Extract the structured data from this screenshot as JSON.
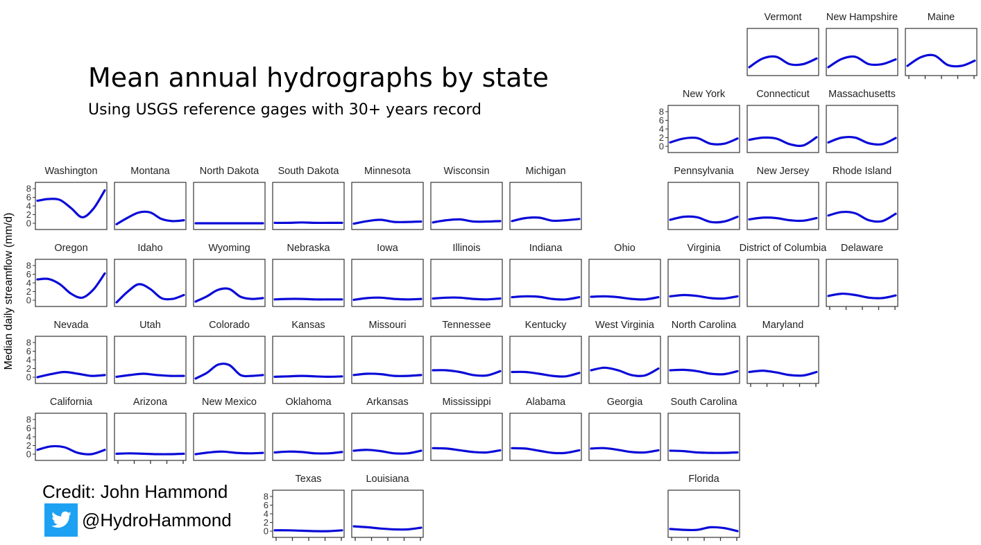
{
  "title": "Mean annual hydrographs by state",
  "subtitle": "Using USGS reference gages with 30+ years record",
  "credit": "Credit: John Hammond",
  "twitter_handle": "@HydroHammond",
  "colors": {
    "line": "#0a0ad8",
    "twitter": "#1da1f2"
  },
  "chart_data": {
    "type": "line",
    "ylabel": "Median daily streamflow (mm/d)",
    "ylim": [
      0,
      8
    ],
    "yticks": [
      0,
      2,
      4,
      6,
      8
    ],
    "grid": false,
    "panels": [
      {
        "name": "Vermont",
        "values": [
          0.5,
          2.5,
          2.9,
          1.2,
          1.2,
          2.5
        ],
        "yaxis": false,
        "xaxis": false
      },
      {
        "name": "New Hampshire",
        "values": [
          0.5,
          2.4,
          2.9,
          1.2,
          1.2,
          2.3
        ],
        "yaxis": false,
        "xaxis": false
      },
      {
        "name": "Maine",
        "values": [
          0.8,
          2.8,
          3.2,
          1.0,
          0.8,
          2.0
        ],
        "yaxis": false,
        "xaxis": true
      },
      {
        "name": "New York",
        "values": [
          0.9,
          1.8,
          1.9,
          0.6,
          0.6,
          1.8
        ],
        "yaxis": true,
        "xaxis": false
      },
      {
        "name": "Connecticut",
        "values": [
          1.5,
          2.0,
          1.8,
          0.5,
          0.2,
          2.1
        ],
        "yaxis": false,
        "xaxis": false
      },
      {
        "name": "Massachusetts",
        "values": [
          0.9,
          2.0,
          2.0,
          0.7,
          0.5,
          1.9
        ],
        "yaxis": false,
        "xaxis": false
      },
      {
        "name": "Washington",
        "values": [
          5.2,
          5.6,
          5.4,
          3.5,
          1.4,
          3.4,
          7.6
        ],
        "yaxis": true,
        "xaxis": false
      },
      {
        "name": "Montana",
        "values": [
          -0.2,
          1.3,
          2.5,
          2.5,
          1.0,
          0.5,
          0.7
        ],
        "yaxis": false,
        "xaxis": false
      },
      {
        "name": "North Dakota",
        "values": [
          0.0,
          0.0,
          0.0,
          0.0,
          0.0,
          0.0
        ],
        "yaxis": false,
        "xaxis": false
      },
      {
        "name": "South Dakota",
        "values": [
          0.1,
          0.1,
          0.2,
          0.1,
          0.1,
          0.1
        ],
        "yaxis": false,
        "xaxis": false
      },
      {
        "name": "Minnesota",
        "values": [
          -0.1,
          0.5,
          0.8,
          0.3,
          0.3,
          0.4
        ],
        "yaxis": false,
        "xaxis": false
      },
      {
        "name": "Wisconsin",
        "values": [
          0.2,
          0.7,
          0.9,
          0.4,
          0.4,
          0.5
        ],
        "yaxis": false,
        "xaxis": false
      },
      {
        "name": "Michigan",
        "values": [
          0.5,
          1.2,
          1.3,
          0.6,
          0.7,
          1.0
        ],
        "yaxis": false,
        "xaxis": false
      },
      {
        "name": "Pennsylvania",
        "values": [
          0.8,
          1.5,
          1.4,
          0.3,
          0.4,
          1.5
        ],
        "yaxis": false,
        "xaxis": false
      },
      {
        "name": "New Jersey",
        "values": [
          0.9,
          1.3,
          1.2,
          0.7,
          0.6,
          1.2
        ],
        "yaxis": false,
        "xaxis": false
      },
      {
        "name": "Rhode Island",
        "values": [
          1.8,
          2.6,
          2.3,
          0.7,
          0.5,
          2.2
        ],
        "yaxis": false,
        "xaxis": false
      },
      {
        "name": "Oregon",
        "values": [
          4.8,
          4.9,
          3.7,
          1.5,
          0.6,
          2.5,
          6.2
        ],
        "yaxis": true,
        "xaxis": false
      },
      {
        "name": "Idaho",
        "values": [
          -0.5,
          2.0,
          3.7,
          2.6,
          0.5,
          0.3,
          1.2
        ],
        "yaxis": false,
        "xaxis": false
      },
      {
        "name": "Wyoming",
        "values": [
          -0.3,
          0.9,
          2.4,
          2.6,
          0.8,
          0.3,
          0.5
        ],
        "yaxis": false,
        "xaxis": false
      },
      {
        "name": "Nebraska",
        "values": [
          0.2,
          0.3,
          0.3,
          0.2,
          0.2,
          0.2
        ],
        "yaxis": false,
        "xaxis": false
      },
      {
        "name": "Iowa",
        "values": [
          0.1,
          0.5,
          0.6,
          0.3,
          0.2,
          0.3
        ],
        "yaxis": false,
        "xaxis": false
      },
      {
        "name": "Illinois",
        "values": [
          0.4,
          0.6,
          0.6,
          0.3,
          0.2,
          0.4
        ],
        "yaxis": false,
        "xaxis": false
      },
      {
        "name": "Indiana",
        "values": [
          0.7,
          0.9,
          0.8,
          0.3,
          0.2,
          0.7
        ],
        "yaxis": false,
        "xaxis": false
      },
      {
        "name": "Ohio",
        "values": [
          0.8,
          0.9,
          0.7,
          0.3,
          0.2,
          0.7
        ],
        "yaxis": false,
        "xaxis": false
      },
      {
        "name": "Virginia",
        "values": [
          0.9,
          1.2,
          1.0,
          0.5,
          0.4,
          0.9
        ],
        "yaxis": false,
        "xaxis": false
      },
      {
        "name": "District of Columbia",
        "values": [],
        "yaxis": false,
        "xaxis": false
      },
      {
        "name": "Delaware",
        "values": [
          1.0,
          1.5,
          1.2,
          0.6,
          0.5,
          1.1
        ],
        "yaxis": false,
        "xaxis": true
      },
      {
        "name": "Nevada",
        "values": [
          0.0,
          0.7,
          1.2,
          0.8,
          0.3,
          0.5
        ],
        "yaxis": true,
        "xaxis": false
      },
      {
        "name": "Utah",
        "values": [
          0.1,
          0.5,
          0.8,
          0.5,
          0.3,
          0.3
        ],
        "yaxis": false,
        "xaxis": false
      },
      {
        "name": "Colorado",
        "values": [
          -0.3,
          1.0,
          2.9,
          2.8,
          0.5,
          0.3,
          0.5
        ],
        "yaxis": false,
        "xaxis": false
      },
      {
        "name": "Kansas",
        "values": [
          0.1,
          0.2,
          0.3,
          0.2,
          0.1,
          0.2
        ],
        "yaxis": false,
        "xaxis": false
      },
      {
        "name": "Missouri",
        "values": [
          0.5,
          0.8,
          0.7,
          0.3,
          0.3,
          0.5
        ],
        "yaxis": false,
        "xaxis": false
      },
      {
        "name": "Tennessee",
        "values": [
          1.6,
          1.6,
          1.2,
          0.5,
          0.4,
          1.4
        ],
        "yaxis": false,
        "xaxis": false
      },
      {
        "name": "Kentucky",
        "values": [
          1.2,
          1.2,
          0.8,
          0.3,
          0.2,
          1.0
        ],
        "yaxis": false,
        "xaxis": false
      },
      {
        "name": "West Virginia",
        "values": [
          1.6,
          2.2,
          1.6,
          0.5,
          0.4,
          2.0
        ],
        "yaxis": false,
        "xaxis": false
      },
      {
        "name": "North Carolina",
        "values": [
          1.6,
          1.7,
          1.4,
          0.8,
          0.7,
          1.4
        ],
        "yaxis": false,
        "xaxis": false
      },
      {
        "name": "Maryland",
        "values": [
          1.2,
          1.5,
          1.1,
          0.5,
          0.4,
          1.2
        ],
        "yaxis": false,
        "xaxis": true
      },
      {
        "name": "California",
        "values": [
          1.0,
          1.8,
          1.6,
          0.3,
          0.0,
          1.0
        ],
        "yaxis": true,
        "xaxis": false
      },
      {
        "name": "Arizona",
        "values": [
          0.1,
          0.2,
          0.1,
          0.0,
          0.0,
          0.1
        ],
        "yaxis": false,
        "xaxis": true
      },
      {
        "name": "New Mexico",
        "values": [
          0.0,
          0.4,
          0.6,
          0.3,
          0.2,
          0.3
        ],
        "yaxis": false,
        "xaxis": false
      },
      {
        "name": "Oklahoma",
        "values": [
          0.4,
          0.6,
          0.5,
          0.2,
          0.2,
          0.5
        ],
        "yaxis": false,
        "xaxis": false
      },
      {
        "name": "Arkansas",
        "values": [
          0.8,
          1.0,
          0.7,
          0.2,
          0.2,
          0.8
        ],
        "yaxis": false,
        "xaxis": false
      },
      {
        "name": "Mississippi",
        "values": [
          1.4,
          1.3,
          0.9,
          0.5,
          0.4,
          0.9
        ],
        "yaxis": false,
        "xaxis": false
      },
      {
        "name": "Alabama",
        "values": [
          1.4,
          1.3,
          0.8,
          0.3,
          0.3,
          0.9
        ],
        "yaxis": false,
        "xaxis": false
      },
      {
        "name": "Georgia",
        "values": [
          1.3,
          1.4,
          1.0,
          0.5,
          0.4,
          0.9
        ],
        "yaxis": false,
        "xaxis": false
      },
      {
        "name": "South Carolina",
        "values": [
          0.8,
          0.7,
          0.4,
          0.3,
          0.3,
          0.4
        ],
        "yaxis": false,
        "xaxis": false
      },
      {
        "name": "Texas",
        "values": [
          0.2,
          0.2,
          0.1,
          0.0,
          0.0,
          0.2
        ],
        "yaxis": true,
        "xaxis": true
      },
      {
        "name": "Louisiana",
        "values": [
          1.1,
          0.9,
          0.6,
          0.4,
          0.4,
          0.8
        ],
        "yaxis": false,
        "xaxis": true
      },
      {
        "name": "Florida",
        "values": [
          0.5,
          0.3,
          0.3,
          0.9,
          0.7,
          0.0
        ],
        "yaxis": false,
        "xaxis": true
      }
    ]
  }
}
